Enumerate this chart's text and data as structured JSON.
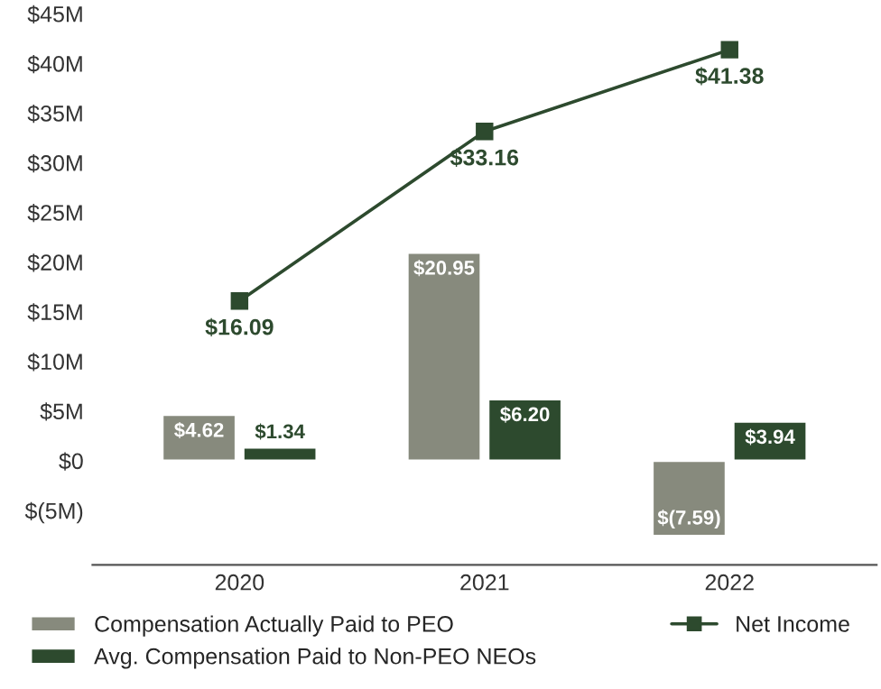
{
  "chart_data": {
    "type": "bar",
    "categories": [
      "2020",
      "2021",
      "2022"
    ],
    "series": [
      {
        "name": "Compensation Actually Paid to PEO",
        "color": "#878a7d",
        "values": [
          4.62,
          20.95,
          -7.59
        ],
        "value_labels": [
          "$4.62",
          "$20.95",
          "$(7.59)"
        ]
      },
      {
        "name": "Avg. Compensation Paid to Non-PEO NEOs",
        "color": "#2d4a2e",
        "values": [
          1.34,
          6.2,
          3.94
        ],
        "value_labels": [
          "$1.34",
          "$6.20",
          "$3.94"
        ]
      },
      {
        "name": "Net Income",
        "type": "line",
        "color": "#2d4a2e",
        "marker": "square",
        "values": [
          16.09,
          33.16,
          41.38
        ],
        "value_labels": [
          "$16.09",
          "$33.16",
          "$41.38"
        ]
      }
    ],
    "ylim": [
      -10.5,
      45
    ],
    "yticks": [
      {
        "value": -5,
        "label": "$(5M)"
      },
      {
        "value": 0,
        "label": "$0"
      },
      {
        "value": 5,
        "label": "$5M"
      },
      {
        "value": 10,
        "label": "$10M"
      },
      {
        "value": 15,
        "label": "$15M"
      },
      {
        "value": 20,
        "label": "$20M"
      },
      {
        "value": 25,
        "label": "$25M"
      },
      {
        "value": 30,
        "label": "$30M"
      },
      {
        "value": 35,
        "label": "$35M"
      },
      {
        "value": 40,
        "label": "$40M"
      },
      {
        "value": 45,
        "label": "$45M"
      }
    ],
    "grid": false,
    "legend": "bottom"
  }
}
